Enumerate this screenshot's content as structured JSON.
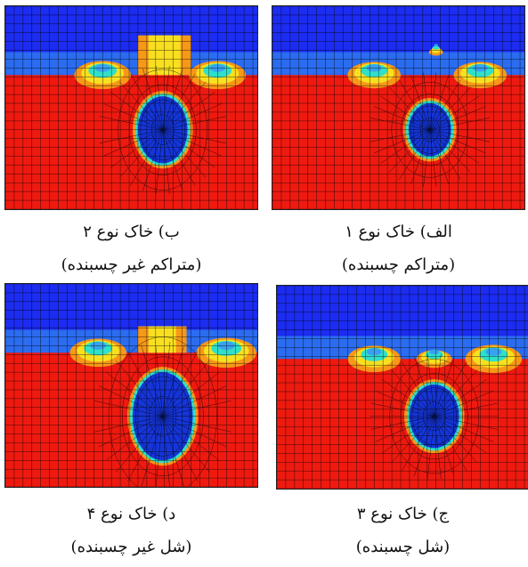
{
  "figure": {
    "panels": [
      {
        "id": "a",
        "caption_line1": "الف) خاک نوع ۱",
        "caption_line2": "(متراکم چسبنده)"
      },
      {
        "id": "b",
        "caption_line1": "ب) خاک نوع ۲",
        "caption_line2": "(متراکم غیر چسبنده)"
      },
      {
        "id": "c",
        "caption_line1": "ج) خاک نوع ۳",
        "caption_line2": "(شل چسبنده)"
      },
      {
        "id": "d",
        "caption_line1": "د) خاک نوع ۴",
        "caption_line2": "(شل غیر چسبنده)"
      }
    ],
    "colors": {
      "air": "#1c2cf0",
      "soil": "#ee1a10",
      "cavity": "#1535d8",
      "transition_light": "#38a2f0",
      "transition_cyan": "#30e0c8",
      "transition_yellow": "#f8e020",
      "transition_orange": "#f89818",
      "mesh_line": "#000000"
    }
  }
}
